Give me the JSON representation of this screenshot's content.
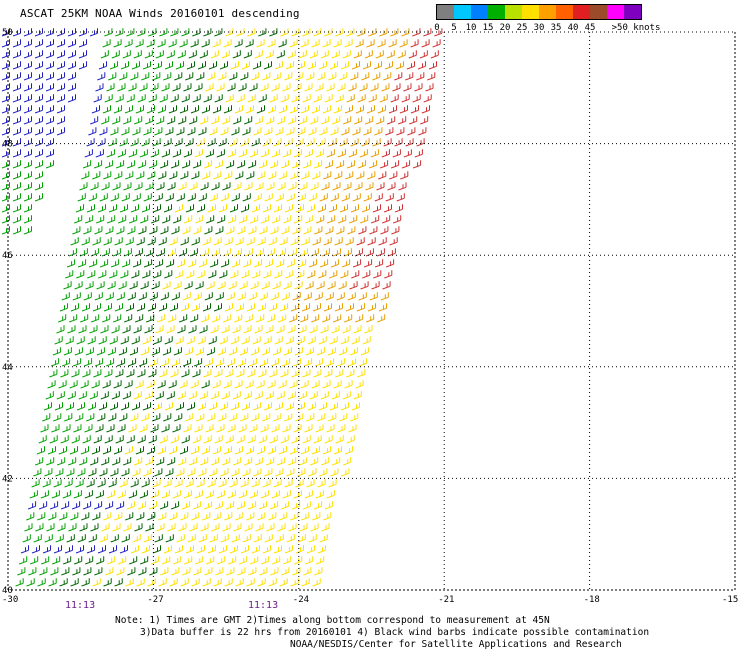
{
  "title": "ASCAT 25KM NOAA Winds 20160101 descending",
  "scale": {
    "colors": [
      "#7f7f7f",
      "#00c8ff",
      "#0080ff",
      "#00b000",
      "#b8e000",
      "#ffe000",
      "#ffa000",
      "#ff6000",
      "#e02020",
      "#9b4a2a",
      "#ff00ff",
      "#8000c0"
    ],
    "labels": [
      "0",
      "5",
      "10",
      "15",
      "20",
      "25",
      "30",
      "35",
      "40",
      "45",
      ">50 knots"
    ]
  },
  "axes": {
    "lat_labels": [
      "50",
      "48",
      "46",
      "44",
      "42",
      "40"
    ],
    "lon_labels": [
      "-30",
      "-27",
      "-24",
      "-21",
      "-18",
      "-15"
    ]
  },
  "times": [
    "11:13",
    "11:13"
  ],
  "notes": [
    "Note: 1) Times are GMT 2)Times along bottom correspond to measurement at 45N",
    "3)Data buffer is 22 hrs from 20160101 4) Black wind barbs indicate possible contamination",
    "NOAA/NESDIS/Center for Satellite Applications and Research"
  ],
  "swath": {
    "regions": [
      {
        "name": "west-strip",
        "barb_color": "#2020c0"
      },
      {
        "name": "green-band",
        "barb_color": "#00a000"
      },
      {
        "name": "dark-green-band",
        "barb_color": "#006400"
      },
      {
        "name": "yellow-band",
        "barb_color": "#ffe000"
      },
      {
        "name": "orange-band",
        "barb_color": "#e8a000"
      },
      {
        "name": "red-band",
        "barb_color": "#d03030"
      }
    ]
  }
}
